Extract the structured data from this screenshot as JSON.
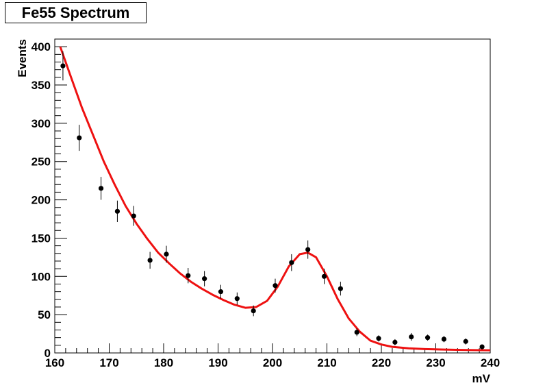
{
  "chart_data": {
    "type": "scatter",
    "title": "Fe55 Spectrum",
    "xlabel": "mV",
    "ylabel": "Events",
    "xlim": [
      160,
      240
    ],
    "ylim": [
      0,
      410
    ],
    "x_ticks": [
      160,
      170,
      180,
      190,
      200,
      210,
      220,
      230,
      240
    ],
    "y_ticks": [
      0,
      50,
      100,
      150,
      200,
      250,
      300,
      350,
      400
    ],
    "grid": false,
    "series": [
      {
        "kind": "points-with-errors",
        "color": "#000000",
        "x": [
          161.5,
          164.5,
          168.5,
          171.5,
          174.5,
          177.5,
          180.5,
          184.5,
          187.5,
          190.5,
          193.5,
          196.5,
          200.5,
          203.5,
          206.5,
          209.5,
          212.5,
          215.5,
          219.5,
          222.5,
          225.5,
          228.5,
          231.5,
          235.5,
          238.5
        ],
        "y": [
          375,
          281,
          215,
          185,
          179,
          121,
          129,
          101,
          97,
          80,
          71,
          55,
          88,
          118,
          135,
          100,
          84,
          27,
          19,
          14,
          21,
          20,
          18,
          15,
          8
        ],
        "err": [
          19,
          17,
          15,
          14,
          13,
          11,
          11,
          10,
          10,
          9,
          8,
          7,
          9,
          11,
          12,
          10,
          9,
          5,
          4,
          4,
          5,
          4,
          4,
          4,
          3
        ]
      },
      {
        "kind": "fit-curve",
        "color": "#ee1111",
        "x": [
          161,
          163,
          165,
          167,
          169,
          171,
          173,
          175,
          177,
          179,
          181,
          183,
          185,
          187,
          189,
          191,
          193,
          195,
          197,
          199,
          201,
          203,
          205,
          206.5,
          208,
          210,
          212,
          214,
          216,
          218,
          220,
          222,
          225,
          228,
          231,
          234,
          237,
          240
        ],
        "y": [
          400,
          360,
          320,
          285,
          250,
          220,
          192,
          169,
          149,
          131,
          117,
          104,
          93,
          84,
          76,
          69,
          63,
          59,
          60,
          68,
          87,
          113,
          129,
          131,
          125,
          100,
          70,
          45,
          28,
          16,
          11,
          8,
          6,
          5,
          4.5,
          4,
          3.7,
          3.5
        ]
      }
    ]
  }
}
